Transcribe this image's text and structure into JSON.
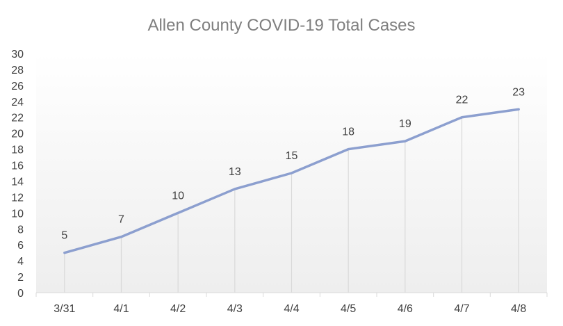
{
  "chart_data": {
    "type": "line",
    "title": "Allen County COVID-19 Total Cases",
    "xlabel": "",
    "ylabel": "",
    "categories": [
      "3/31",
      "4/1",
      "4/2",
      "4/3",
      "4/4",
      "4/5",
      "4/6",
      "4/7",
      "4/8"
    ],
    "series": [
      {
        "values": [
          5,
          7,
          10,
          13,
          15,
          18,
          19,
          22,
          23
        ]
      }
    ],
    "ylim": [
      0,
      30
    ],
    "yticks": [
      0,
      2,
      4,
      6,
      8,
      10,
      12,
      14,
      16,
      18,
      20,
      22,
      24,
      26,
      28,
      30
    ],
    "data_labels": true,
    "drop_lines": true,
    "grid": false,
    "legend": "none",
    "colors": {
      "line": "#8c9fcf",
      "drop_line": "#d9d9d9",
      "axis": "#d9d9d9",
      "title": "#7f7f7f",
      "text": "#404040",
      "plot_gradient_top": "#ffffff",
      "plot_gradient_bottom": "#eeeeee"
    }
  }
}
